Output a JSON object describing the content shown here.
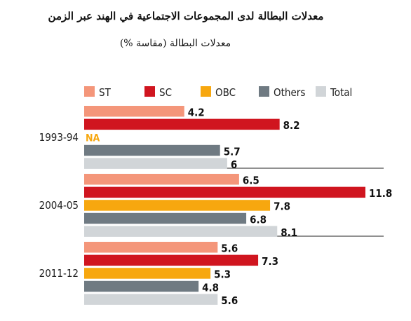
{
  "chart_data": {
    "type": "bar",
    "orientation": "horizontal",
    "title": "معدلات البطالة لدى المجموعات الاجتماعية في الهند عبر الزمن",
    "subtitle": "معدلات البطالة (مقاسة %)",
    "categories": [
      "1993-94",
      "2004-05",
      "2011-12"
    ],
    "series": [
      {
        "name": "ST",
        "color": "#f4967a",
        "values": [
          4.2,
          6.5,
          5.6
        ],
        "labels": [
          "4.2",
          "6.5",
          "5.6"
        ]
      },
      {
        "name": "SC",
        "color": "#d0151f",
        "values": [
          8.2,
          11.8,
          7.3
        ],
        "labels": [
          "8.2",
          "11.8",
          "7.3"
        ]
      },
      {
        "name": "OBC",
        "color": "#f7a70f",
        "values": [
          null,
          7.8,
          5.3
        ],
        "labels": [
          "NA",
          "7.8",
          "5.3"
        ]
      },
      {
        "name": "Others",
        "color": "#6f7a82",
        "values": [
          5.7,
          6.8,
          4.8
        ],
        "labels": [
          "5.7",
          "6.8",
          "4.8"
        ]
      },
      {
        "name": "Total",
        "color": "#d1d5d8",
        "values": [
          6,
          8.1,
          5.6
        ],
        "labels": [
          "6",
          "8.1",
          "5.6"
        ]
      }
    ],
    "xlim": [
      0,
      15
    ],
    "legend_position": "top",
    "grid": false,
    "na_color": "#f7a70f"
  }
}
